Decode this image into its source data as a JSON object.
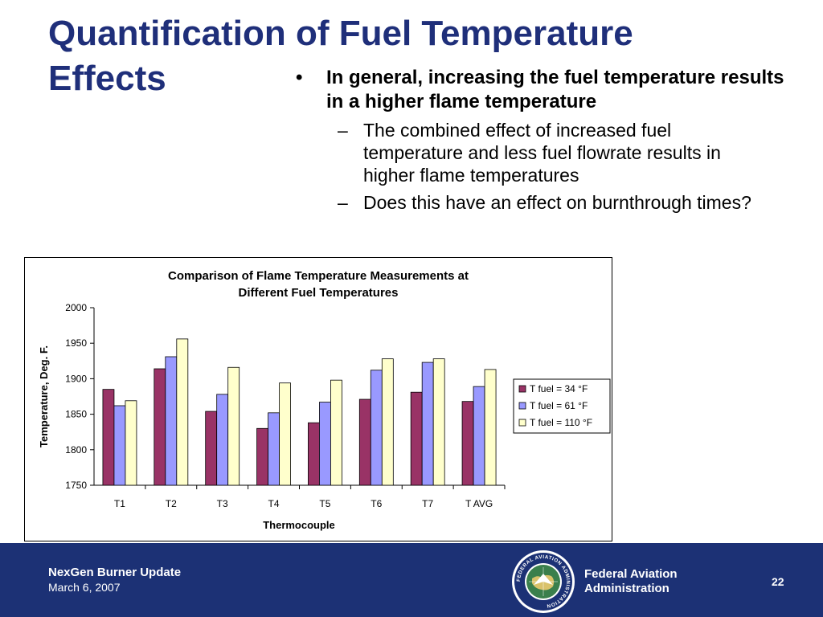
{
  "slide": {
    "title": "Quantification of Fuel Temperature Effects",
    "bullet_symbol": "•",
    "bullet_main": "In general, increasing the fuel temperature results in a higher flame temperature",
    "sub_symbol": "–",
    "sub_bullets": [
      "The combined effect of increased fuel temperature and less fuel flowrate results in higher flame temperatures",
      "Does this have an effect on burnthrough times?"
    ]
  },
  "chart_data": {
    "type": "bar",
    "title": "Comparison of Flame Temperature Measurements at Different Fuel Temperatures",
    "xlabel": "Thermocouple",
    "ylabel": "Temperature, Deg. F.",
    "ylim": [
      1750,
      2000
    ],
    "yticks": [
      1750,
      1800,
      1850,
      1900,
      1950,
      2000
    ],
    "grid": false,
    "legend_position": "right",
    "categories": [
      "T1",
      "T2",
      "T3",
      "T4",
      "T5",
      "T6",
      "T7",
      "T AVG"
    ],
    "series": [
      {
        "name": "T fuel = 34 °F",
        "color": "#993366",
        "values": [
          1885,
          1914,
          1854,
          1830,
          1838,
          1871,
          1881,
          1868
        ]
      },
      {
        "name": "T fuel = 61 °F",
        "color": "#9999ff",
        "values": [
          1862,
          1931,
          1878,
          1852,
          1867,
          1912,
          1923,
          1889
        ]
      },
      {
        "name": "T fuel = 110 °F",
        "color": "#ffffcc",
        "values": [
          1869,
          1956,
          1916,
          1894,
          1898,
          1928,
          1928,
          1913
        ]
      }
    ]
  },
  "footer": {
    "project": "NexGen Burner Update",
    "date": "March 6, 2007",
    "org_line1": "Federal Aviation",
    "org_line2": "Administration",
    "page_number": "22",
    "seal_text": "FEDERAL AVIATION ADMINISTRATION",
    "bg_color": "#1c3175"
  }
}
